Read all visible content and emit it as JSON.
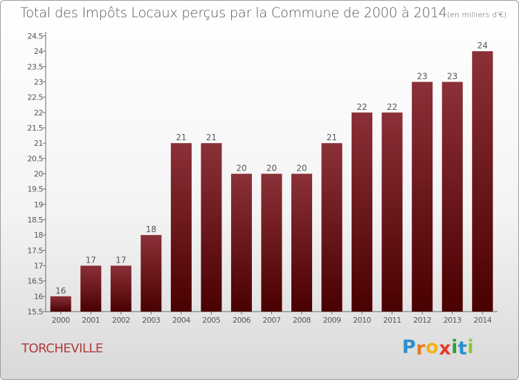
{
  "chart_data": {
    "type": "bar",
    "title": "Total des Impôts Locaux perçus par la Commune de 2000 à 2014",
    "title_unit": "(en milliers d'€)",
    "categories": [
      "2000",
      "2001",
      "2002",
      "2003",
      "2004",
      "2005",
      "2006",
      "2007",
      "2008",
      "2009",
      "2010",
      "2011",
      "2012",
      "2013",
      "2014"
    ],
    "values": [
      16,
      17,
      17,
      18,
      21,
      21,
      20,
      20,
      20,
      21,
      22,
      22,
      23,
      23,
      24
    ],
    "data_labels": [
      "16",
      "17",
      "17",
      "18",
      "21",
      "21",
      "20",
      "20",
      "20",
      "21",
      "22",
      "22",
      "23",
      "23",
      "24"
    ],
    "ylim": [
      15.5,
      24.5
    ],
    "yticks": [
      "15.5",
      "16",
      "16.5",
      "17",
      "17.5",
      "18",
      "18.5",
      "19",
      "19.5",
      "20",
      "20.5",
      "21",
      "21.5",
      "22",
      "22.5",
      "23",
      "23.5",
      "24",
      "24.5"
    ],
    "xlabel": "",
    "ylabel": "",
    "grid": false,
    "bar_color_top": "#8b3038",
    "bar_color_bottom": "#4a0000"
  },
  "commune": "TORCHEVILLE",
  "logo": {
    "letters": [
      "P",
      "r",
      "o",
      "x",
      "i",
      "t",
      "i"
    ],
    "colors": [
      "#2a8fd0",
      "#e87a1e",
      "#f0b418",
      "#e53a2a",
      "#2aa03a",
      "#2a8fd0",
      "#8cc63f"
    ]
  }
}
